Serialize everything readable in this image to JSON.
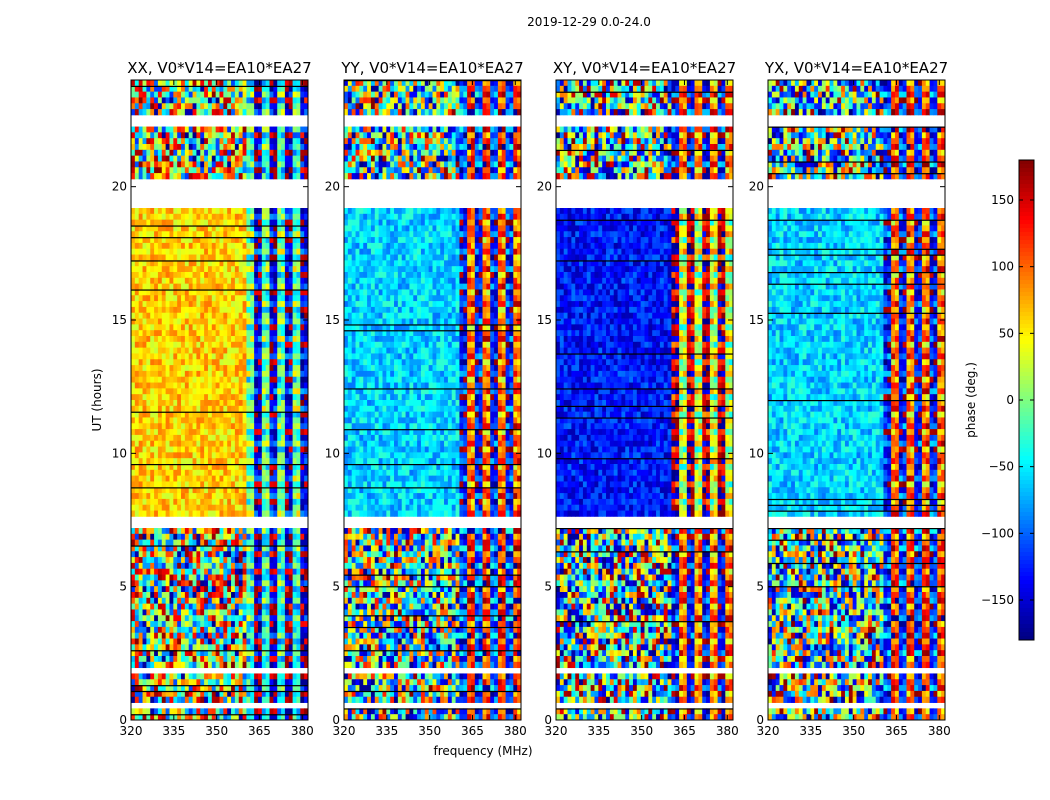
{
  "chart_data": {
    "type": "heatmap",
    "suptitle": "2019-12-29 0.0-24.0",
    "xlabel": "frequency (MHz)",
    "ylabel": "UT (hours)",
    "xlim": [
      320,
      382
    ],
    "ylim": [
      0,
      24
    ],
    "xticks": [
      320,
      335,
      350,
      365,
      380
    ],
    "xtick_labels": [
      "320",
      "335",
      "350",
      "365",
      "380"
    ],
    "yticks": [
      0,
      5,
      10,
      15,
      20
    ],
    "ytick_labels": [
      "0",
      "5",
      "10",
      "15",
      "20"
    ],
    "panels": [
      {
        "title": "XX, V0*V14=EA10*EA27",
        "mean_phase_day": 60,
        "mean_phase_late": 40
      },
      {
        "title": "YY, V0*V14=EA10*EA27",
        "mean_phase_day": -60,
        "mean_phase_late": -30
      },
      {
        "title": "XY, V0*V14=EA10*EA27",
        "mean_phase_day": -130,
        "mean_phase_late": -60
      },
      {
        "title": "YX, V0*V14=EA10*EA27",
        "mean_phase_day": -60,
        "mean_phase_late": -40
      }
    ],
    "striped_region_start_mhz": 360,
    "missing_bands_hours": [
      [
        19.3,
        20.3
      ],
      [
        22.3,
        22.6
      ],
      [
        7.2,
        7.6
      ],
      [
        0.4,
        0.6
      ],
      [
        1.7,
        1.9
      ]
    ],
    "colorbar": {
      "label": "phase (deg.)",
      "range": [
        -180,
        180
      ],
      "ticks": [
        150,
        100,
        50,
        0,
        -50,
        -100,
        -150
      ],
      "tick_labels": [
        "150",
        "100",
        "50",
        "0",
        "−50",
        "−100",
        "−150"
      ],
      "colormap": "jet"
    }
  }
}
